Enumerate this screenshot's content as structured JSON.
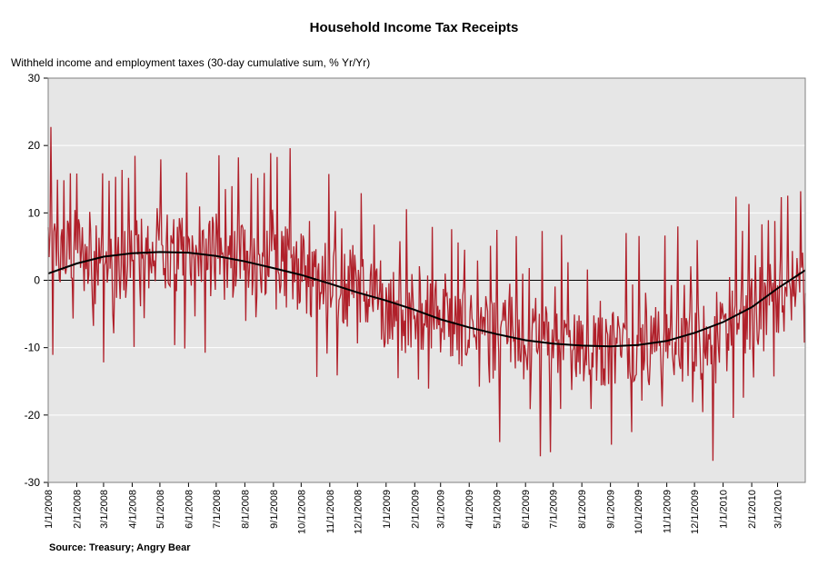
{
  "chart_data": {
    "type": "line",
    "title": "Household Income Tax Receipts",
    "ylabel": "Withheld income and employment taxes (30-day cumulative sum, % Yr/Yr)",
    "source": "Source: Treasury; Angry Bear",
    "ylim": [
      -30,
      30
    ],
    "yticks": [
      30,
      20,
      10,
      0,
      -10,
      -20,
      -30
    ],
    "x_range": [
      "2008-01-01",
      "2010-03-31"
    ],
    "x_tick_labels": [
      "1/1/2008",
      "2/1/2008",
      "3/1/2008",
      "4/1/2008",
      "5/1/2008",
      "6/1/2008",
      "7/1/2008",
      "8/1/2008",
      "9/1/2008",
      "10/1/2008",
      "11/1/2008",
      "12/1/2008",
      "1/1/2009",
      "2/1/2009",
      "3/1/2009",
      "4/1/2009",
      "5/1/2009",
      "6/1/2009",
      "7/1/2009",
      "8/1/2009",
      "9/1/2009",
      "10/1/2009",
      "11/1/2009",
      "12/1/2009",
      "1/1/2010",
      "2/1/2010",
      "3/1/2010"
    ],
    "grid": true,
    "colors": {
      "plot_bg": "#e6e6e6",
      "series_daily": "#b0202a",
      "series_trend": "#000000",
      "gridline": "#ffffff"
    },
    "series": [
      {
        "kind": "daily",
        "x": [
          "2008-01-01",
          "2008-01-15",
          "2008-02-01",
          "2008-02-15",
          "2008-03-01",
          "2008-03-15",
          "2008-04-01",
          "2008-04-15",
          "2008-05-01",
          "2008-05-15",
          "2008-06-01",
          "2008-06-15",
          "2008-07-01",
          "2008-07-15",
          "2008-08-01",
          "2008-08-15",
          "2008-09-01",
          "2008-09-15",
          "2008-10-01",
          "2008-10-15",
          "2008-11-01",
          "2008-11-15",
          "2008-12-01",
          "2008-12-15",
          "2009-01-01",
          "2009-01-15",
          "2009-02-01",
          "2009-02-15",
          "2009-03-01",
          "2009-03-15",
          "2009-04-01",
          "2009-04-15",
          "2009-05-01",
          "2009-05-15",
          "2009-06-01",
          "2009-06-15",
          "2009-07-01",
          "2009-07-15",
          "2009-08-01",
          "2009-08-15",
          "2009-09-01",
          "2009-09-15",
          "2009-10-01",
          "2009-10-15",
          "2009-11-01",
          "2009-11-15",
          "2009-12-01",
          "2009-12-15",
          "2010-01-01",
          "2010-01-15",
          "2010-02-01",
          "2010-02-15",
          "2010-03-01",
          "2010-03-15",
          "2010-03-31"
        ],
        "values": [
          6,
          3,
          5,
          2,
          3,
          0,
          4,
          1,
          6,
          3,
          4,
          2,
          4,
          1,
          5,
          2,
          5,
          2,
          1,
          0,
          2,
          -1,
          0,
          -3,
          -5,
          -6,
          -4,
          -5,
          -5,
          -7,
          -7,
          -8,
          -9,
          -8,
          -10,
          -9,
          -10,
          -11,
          -9,
          -11,
          -10,
          -9,
          -9,
          -10,
          -8,
          -9,
          -8,
          -10,
          -9,
          -6,
          -5,
          -3,
          -2,
          -1,
          1
        ]
      },
      {
        "kind": "trend",
        "x": [
          "2008-01-01",
          "2008-02-01",
          "2008-03-01",
          "2008-04-01",
          "2008-05-01",
          "2008-06-01",
          "2008-07-01",
          "2008-08-01",
          "2008-09-01",
          "2008-10-01",
          "2008-11-01",
          "2008-12-01",
          "2009-01-01",
          "2009-02-01",
          "2009-03-01",
          "2009-04-01",
          "2009-05-01",
          "2009-06-01",
          "2009-07-01",
          "2009-08-01",
          "2009-09-01",
          "2009-10-01",
          "2009-11-01",
          "2009-12-01",
          "2010-01-01",
          "2010-02-01",
          "2010-03-01",
          "2010-03-31"
        ],
        "values": [
          1,
          2.5,
          3.5,
          4,
          4.2,
          4.1,
          3.6,
          2.8,
          1.8,
          0.8,
          -0.5,
          -1.8,
          -3,
          -4.4,
          -5.8,
          -7,
          -8,
          -8.9,
          -9.4,
          -9.7,
          -9.8,
          -9.6,
          -9,
          -7.8,
          -6.2,
          -4,
          -1.2,
          1.5
        ]
      }
    ]
  }
}
